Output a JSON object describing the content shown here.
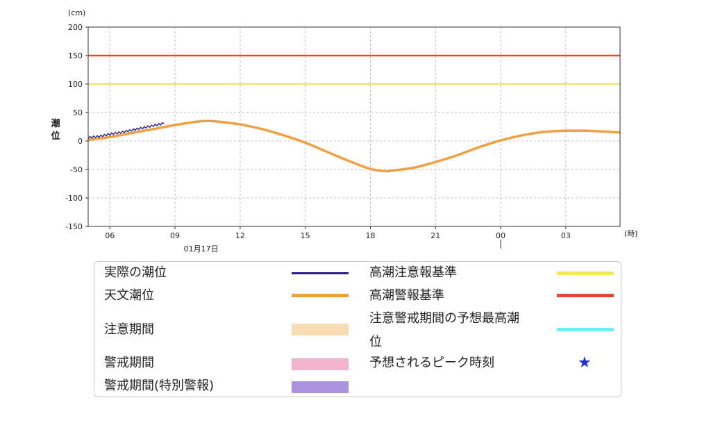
{
  "colors": {
    "actual": "#2a1a8c",
    "astro": "#f0a040",
    "advisory_line": "#f2e65a",
    "warning_line": "#e04a32",
    "advisory_period": "#f7dcb4",
    "warning_period": "#f2b3cc",
    "special_period": "#aa92dc",
    "forecast_max": "#6df0f4",
    "peak_star": "#1a2ee8",
    "grid": "#bdbdbd"
  },
  "chart_data": {
    "type": "line",
    "ylabel": "潮位",
    "yunit": "(cm)",
    "xunit": "(時)",
    "date_label": "01月17日",
    "ylim": [
      -150,
      200
    ],
    "yticks": [
      "200",
      "150",
      "100",
      "50",
      "0",
      "-50",
      "-100",
      "-150"
    ],
    "xrange_hours": [
      5,
      29.5
    ],
    "xticks": [
      {
        "hour": 6,
        "label": "06"
      },
      {
        "hour": 9,
        "label": "09"
      },
      {
        "hour": 12,
        "label": "12"
      },
      {
        "hour": 15,
        "label": "15"
      },
      {
        "hour": 18,
        "label": "18"
      },
      {
        "hour": 21,
        "label": "21"
      },
      {
        "hour": 24,
        "label": "00"
      },
      {
        "hour": 27,
        "label": "03"
      }
    ],
    "grid": true,
    "thresholds": [
      {
        "name": "高潮警報基準",
        "value": 150
      },
      {
        "name": "高潮注意報基準",
        "value": 100
      }
    ],
    "series": [
      {
        "name": "天文潮位",
        "x": [
          5,
          6,
          7,
          8,
          9,
          10,
          10.5,
          11,
          12,
          13,
          14,
          15,
          16,
          17,
          18,
          18.7,
          19,
          20,
          21,
          22,
          23,
          24,
          25,
          26,
          27,
          27.5,
          28,
          29,
          29.5
        ],
        "y": [
          2,
          7,
          14,
          21,
          28,
          34,
          35,
          34,
          29,
          21,
          10,
          -3,
          -19,
          -35,
          -49,
          -53,
          -52,
          -47,
          -37,
          -25,
          -11,
          1,
          10,
          16,
          18,
          18,
          18,
          16,
          15
        ]
      },
      {
        "name": "実際の潮位",
        "x": [
          5,
          5.5,
          6,
          6.5,
          7,
          7.5,
          8,
          8.5
        ],
        "y": [
          6,
          8,
          12,
          15,
          19,
          23,
          27,
          31
        ]
      }
    ]
  },
  "legend": {
    "left_items": [
      {
        "label": "実際の潮位",
        "kind": "line",
        "color_key": "actual"
      },
      {
        "label": "天文潮位",
        "kind": "line",
        "color_key": "astro"
      },
      {
        "label": "注意期間",
        "kind": "box",
        "color_key": "advisory_period"
      },
      {
        "label": "警戒期間",
        "kind": "box",
        "color_key": "warning_period"
      },
      {
        "label": "警戒期間(特別警報)",
        "kind": "box",
        "color_key": "special_period"
      }
    ],
    "right_items": [
      {
        "label": "高潮注意報基準",
        "kind": "line",
        "color_key": "advisory_line"
      },
      {
        "label": "高潮警報基準",
        "kind": "line",
        "color_key": "warning_line"
      },
      {
        "label_line1": "注意警戒期間の予想最高潮",
        "label_line2": "位",
        "kind": "line",
        "color_key": "forecast_max"
      },
      {
        "label": "予想されるピーク時刻",
        "kind": "star",
        "star_glyph": "★",
        "color_key": "peak_star"
      }
    ]
  }
}
